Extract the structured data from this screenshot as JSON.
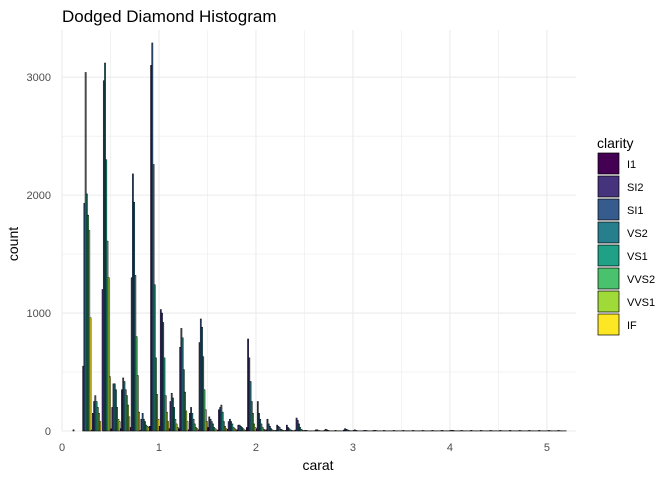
{
  "chart_data": {
    "type": "bar",
    "title": "Dodged Diamond Histogram",
    "xlabel": "carat",
    "ylabel": "count",
    "xlim": [
      0,
      5.3
    ],
    "ylim": [
      0,
      3400
    ],
    "x_ticks": [
      0,
      1,
      2,
      3,
      4,
      5
    ],
    "y_ticks": [
      0,
      1000,
      2000,
      3000
    ],
    "bin_width": 0.1,
    "legend_title": "clarity",
    "legend_position": "right",
    "grid": true,
    "bins": [
      0.15,
      0.25,
      0.35,
      0.45,
      0.55,
      0.65,
      0.75,
      0.85,
      0.95,
      1.05,
      1.15,
      1.25,
      1.35,
      1.45,
      1.55,
      1.65,
      1.75,
      1.85,
      1.95,
      2.05,
      2.15,
      2.25,
      2.35,
      2.45,
      2.55,
      2.65,
      2.75,
      2.85,
      2.95,
      3.05,
      3.15,
      3.25,
      3.35,
      3.45,
      3.55,
      3.65,
      3.75,
      3.85,
      3.95,
      4.05,
      4.15,
      4.25,
      4.35,
      4.45,
      4.55,
      4.65,
      4.75,
      4.85,
      4.95,
      5.05,
      5.15
    ],
    "series": [
      {
        "name": "I1",
        "color": "#440154",
        "values": [
          0,
          0,
          8,
          0,
          18,
          20,
          30,
          5,
          40,
          40,
          20,
          20,
          10,
          10,
          30,
          8,
          15,
          10,
          30,
          20,
          10,
          5,
          5,
          8,
          5,
          3,
          5,
          2,
          8,
          5,
          3,
          3,
          2,
          2,
          2,
          2,
          2,
          2,
          3,
          5,
          2,
          2,
          2,
          2,
          2,
          2,
          2,
          2,
          2,
          2,
          2
        ]
      },
      {
        "name": "SI2",
        "color": "#46337e",
        "values": [
          10,
          550,
          150,
          1200,
          200,
          350,
          1300,
          100,
          3100,
          1030,
          250,
          710,
          150,
          750,
          120,
          180,
          80,
          50,
          780,
          250,
          100,
          50,
          50,
          110,
          5,
          10,
          15,
          5,
          20,
          10,
          5,
          5,
          5,
          5,
          5,
          5,
          5,
          5,
          5,
          5,
          5,
          5,
          5,
          5,
          5,
          5,
          5,
          5,
          5,
          5,
          5
        ]
      },
      {
        "name": "SI1",
        "color": "#365c8d",
        "values": [
          0,
          1930,
          250,
          2970,
          400,
          450,
          2180,
          150,
          3290,
          1000,
          320,
          870,
          200,
          950,
          100,
          200,
          100,
          50,
          620,
          150,
          60,
          40,
          30,
          90,
          3,
          10,
          10,
          3,
          15,
          5,
          5,
          5,
          3,
          3,
          3,
          3,
          3,
          3,
          3,
          5,
          3,
          3,
          3,
          3,
          3,
          3,
          3,
          3,
          3,
          3,
          3
        ]
      },
      {
        "name": "VS2",
        "color": "#277f8e",
        "values": [
          0,
          3040,
          300,
          3120,
          400,
          420,
          1940,
          100,
          2260,
          920,
          280,
          790,
          150,
          880,
          80,
          220,
          80,
          40,
          420,
          100,
          40,
          30,
          20,
          60,
          2,
          5,
          5,
          2,
          10,
          3,
          3,
          3,
          2,
          2,
          2,
          2,
          2,
          2,
          2,
          3,
          2,
          2,
          2,
          2,
          2,
          2,
          2,
          2,
          2,
          2,
          2
        ]
      },
      {
        "name": "VS1",
        "color": "#1fa187",
        "values": [
          0,
          2010,
          250,
          2300,
          350,
          350,
          1320,
          80,
          1240,
          620,
          200,
          520,
          100,
          630,
          60,
          160,
          60,
          30,
          250,
          60,
          20,
          15,
          10,
          30,
          2,
          3,
          3,
          2,
          5,
          2,
          2,
          2,
          2,
          2,
          2,
          2,
          2,
          2,
          2,
          2,
          2,
          2,
          2,
          2,
          2,
          2,
          2,
          2,
          2,
          2,
          2
        ]
      },
      {
        "name": "VVS2",
        "color": "#4ac16d",
        "values": [
          0,
          1830,
          200,
          1610,
          200,
          300,
          800,
          50,
          620,
          300,
          100,
          330,
          60,
          350,
          30,
          80,
          30,
          20,
          150,
          30,
          10,
          10,
          5,
          15,
          2,
          2,
          2,
          2,
          3,
          2,
          2,
          2,
          2,
          2,
          2,
          2,
          2,
          2,
          2,
          2,
          2,
          2,
          2,
          2,
          2,
          2,
          2,
          2,
          2,
          2,
          2
        ]
      },
      {
        "name": "VVS1",
        "color": "#a0da39",
        "values": [
          0,
          1700,
          150,
          1300,
          100,
          220,
          470,
          40,
          310,
          160,
          60,
          170,
          30,
          180,
          20,
          40,
          20,
          10,
          60,
          15,
          5,
          5,
          3,
          5,
          2,
          2,
          2,
          2,
          2,
          2,
          2,
          2,
          2,
          2,
          2,
          2,
          2,
          2,
          2,
          2,
          2,
          2,
          2,
          2,
          2,
          2,
          2,
          2,
          2,
          2,
          2
        ]
      },
      {
        "name": "IF",
        "color": "#fde725",
        "values": [
          0,
          960,
          80,
          460,
          80,
          120,
          160,
          30,
          100,
          80,
          30,
          80,
          20,
          80,
          10,
          20,
          10,
          5,
          30,
          8,
          3,
          3,
          2,
          3,
          2,
          2,
          2,
          2,
          2,
          2,
          2,
          2,
          2,
          2,
          2,
          2,
          2,
          2,
          2,
          2,
          2,
          2,
          2,
          2,
          2,
          2,
          2,
          2,
          2,
          2,
          2
        ]
      }
    ]
  }
}
